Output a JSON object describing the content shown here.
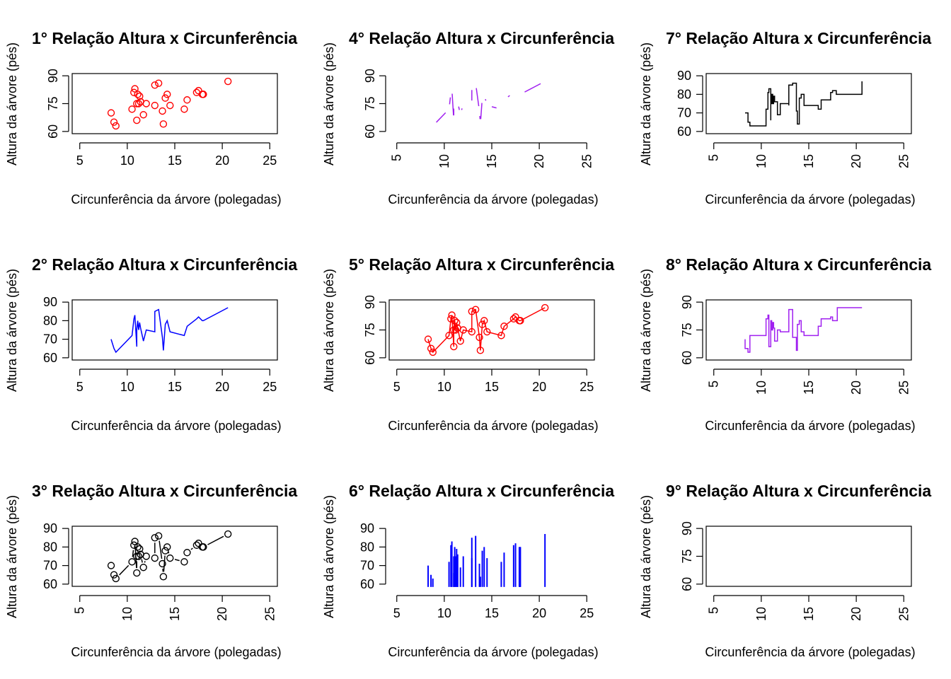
{
  "figure": {
    "layout": "3x3 grid of R base-graphics panels, filled column-wise (1-3 left column, 4-6 middle, 7-9 right)"
  },
  "chart_data": [
    {
      "panel": 1,
      "type": "scatter",
      "plot_type": "p",
      "title": "1° Relação Altura x Circunferência",
      "xlabel": "Circunferência da árvore (polegadas)",
      "ylabel": "Altura da árvore (pés)",
      "xlim": [
        5,
        25
      ],
      "ylim": [
        60,
        90
      ],
      "xticks": [
        5,
        10,
        15,
        20,
        25
      ],
      "yticks": [
        60,
        75,
        90
      ],
      "x_tick_orientation": "horizontal",
      "y_tick_orientation": "vertical",
      "color": "#ff0000",
      "box": true,
      "grid": false,
      "x": [
        8.3,
        8.6,
        8.8,
        10.5,
        10.7,
        10.8,
        11.0,
        11.0,
        11.1,
        11.2,
        11.3,
        11.4,
        11.4,
        11.7,
        12.0,
        12.9,
        12.9,
        13.3,
        13.7,
        13.8,
        14.0,
        14.2,
        14.5,
        16.0,
        16.3,
        17.3,
        17.5,
        17.9,
        18.0,
        18.0,
        20.6
      ],
      "y": [
        70,
        65,
        63,
        72,
        81,
        83,
        66,
        75,
        80,
        75,
        79,
        76,
        76,
        69,
        75,
        74,
        85,
        86,
        71,
        64,
        78,
        80,
        74,
        72,
        77,
        81,
        82,
        80,
        80,
        80,
        87
      ]
    },
    {
      "panel": 2,
      "type": "line",
      "plot_type": "l",
      "title": "2° Relação Altura x Circunferência",
      "xlabel": "Circunferência da árvore (polegadas)",
      "ylabel": "Altura da árvore (pés)",
      "xlim": [
        5,
        25
      ],
      "ylim": [
        60,
        90
      ],
      "xticks": [
        5,
        10,
        15,
        20,
        25
      ],
      "yticks": [
        60,
        70,
        80,
        90
      ],
      "x_tick_orientation": "horizontal",
      "y_tick_orientation": "horizontal",
      "color": "#0000ff",
      "box": true,
      "grid": false,
      "x": [
        8.3,
        8.6,
        8.8,
        10.5,
        10.7,
        10.8,
        11.0,
        11.0,
        11.1,
        11.2,
        11.3,
        11.4,
        11.4,
        11.7,
        12.0,
        12.9,
        12.9,
        13.3,
        13.7,
        13.8,
        14.0,
        14.2,
        14.5,
        16.0,
        16.3,
        17.3,
        17.5,
        17.9,
        18.0,
        18.0,
        20.6
      ],
      "y": [
        70,
        65,
        63,
        72,
        81,
        83,
        66,
        75,
        80,
        75,
        79,
        76,
        76,
        69,
        75,
        74,
        85,
        86,
        71,
        64,
        78,
        80,
        74,
        72,
        77,
        81,
        82,
        80,
        80,
        80,
        87
      ]
    },
    {
      "panel": 3,
      "type": "line",
      "plot_type": "b",
      "title": "3° Relação Altura x Circunferência",
      "xlabel": "Circunferência da árvore (polegadas)",
      "ylabel": "Altura da árvore (pés)",
      "xlim": [
        5,
        25
      ],
      "ylim": [
        60,
        90
      ],
      "xticks": [
        5,
        10,
        15,
        20,
        25
      ],
      "yticks": [
        60,
        70,
        80,
        90
      ],
      "x_tick_orientation": "vertical",
      "y_tick_orientation": "horizontal",
      "color": "#000000",
      "box": true,
      "grid": false,
      "x": [
        8.3,
        8.6,
        8.8,
        10.5,
        10.7,
        10.8,
        11.0,
        11.0,
        11.1,
        11.2,
        11.3,
        11.4,
        11.4,
        11.7,
        12.0,
        12.9,
        12.9,
        13.3,
        13.7,
        13.8,
        14.0,
        14.2,
        14.5,
        16.0,
        16.3,
        17.3,
        17.5,
        17.9,
        18.0,
        18.0,
        20.6
      ],
      "y": [
        70,
        65,
        63,
        72,
        81,
        83,
        66,
        75,
        80,
        75,
        79,
        76,
        76,
        69,
        75,
        74,
        85,
        86,
        71,
        64,
        78,
        80,
        74,
        72,
        77,
        81,
        82,
        80,
        80,
        80,
        87
      ]
    },
    {
      "panel": 4,
      "type": "line",
      "plot_type": "c",
      "title": "4° Relação Altura x Circunferência",
      "xlabel": "Circunferência da árvore (polegadas)",
      "ylabel": "Altura da árvore (pés)",
      "xlim": [
        5,
        25
      ],
      "ylim": [
        60,
        90
      ],
      "xticks": [
        5,
        10,
        15,
        20,
        25
      ],
      "yticks": [
        60,
        75,
        90
      ],
      "x_tick_orientation": "vertical",
      "y_tick_orientation": "vertical",
      "color": "#a020f0",
      "box": false,
      "grid": false,
      "x": [
        8.3,
        8.6,
        8.8,
        10.5,
        10.7,
        10.8,
        11.0,
        11.0,
        11.1,
        11.2,
        11.3,
        11.4,
        11.4,
        11.7,
        12.0,
        12.9,
        12.9,
        13.3,
        13.7,
        13.8,
        14.0,
        14.2,
        14.5,
        16.0,
        16.3,
        17.3,
        17.5,
        17.9,
        18.0,
        18.0,
        20.6
      ],
      "y": [
        70,
        65,
        63,
        72,
        81,
        83,
        66,
        75,
        80,
        75,
        79,
        76,
        76,
        69,
        75,
        74,
        85,
        86,
        71,
        64,
        78,
        80,
        74,
        72,
        77,
        81,
        82,
        80,
        80,
        80,
        87
      ]
    },
    {
      "panel": 5,
      "type": "line",
      "plot_type": "o",
      "title": "5° Relação Altura x Circunferência",
      "xlabel": "Circunferência da árvore (polegadas)",
      "ylabel": "Altura da árvore (pés)",
      "xlim": [
        5,
        25
      ],
      "ylim": [
        60,
        90
      ],
      "xticks": [
        5,
        10,
        15,
        20,
        25
      ],
      "yticks": [
        60,
        75,
        90
      ],
      "x_tick_orientation": "horizontal",
      "y_tick_orientation": "vertical",
      "color": "#ff0000",
      "box": true,
      "grid": false,
      "x": [
        8.3,
        8.6,
        8.8,
        10.5,
        10.7,
        10.8,
        11.0,
        11.0,
        11.1,
        11.2,
        11.3,
        11.4,
        11.4,
        11.7,
        12.0,
        12.9,
        12.9,
        13.3,
        13.7,
        13.8,
        14.0,
        14.2,
        14.5,
        16.0,
        16.3,
        17.3,
        17.5,
        17.9,
        18.0,
        18.0,
        20.6
      ],
      "y": [
        70,
        65,
        63,
        72,
        81,
        83,
        66,
        75,
        80,
        75,
        79,
        76,
        76,
        69,
        75,
        74,
        85,
        86,
        71,
        64,
        78,
        80,
        74,
        72,
        77,
        81,
        82,
        80,
        80,
        80,
        87
      ]
    },
    {
      "panel": 6,
      "type": "bar",
      "plot_type": "h",
      "title": "6° Relação Altura x Circunferência",
      "xlabel": "Circunferência da árvore (polegadas)",
      "ylabel": "Altura da árvore (pés)",
      "xlim": [
        5,
        25
      ],
      "ylim": [
        60,
        90
      ],
      "xticks": [
        5,
        10,
        15,
        20,
        25
      ],
      "yticks": [
        60,
        70,
        80,
        90
      ],
      "x_tick_orientation": "horizontal",
      "y_tick_orientation": "horizontal",
      "color": "#0000ff",
      "box": false,
      "grid": false,
      "x": [
        8.3,
        8.6,
        8.8,
        10.5,
        10.7,
        10.8,
        11.0,
        11.0,
        11.1,
        11.2,
        11.3,
        11.4,
        11.4,
        11.7,
        12.0,
        12.9,
        12.9,
        13.3,
        13.7,
        13.8,
        14.0,
        14.2,
        14.5,
        16.0,
        16.3,
        17.3,
        17.5,
        17.9,
        18.0,
        18.0,
        20.6
      ],
      "y": [
        70,
        65,
        63,
        72,
        81,
        83,
        66,
        75,
        80,
        75,
        79,
        76,
        76,
        69,
        75,
        74,
        85,
        86,
        71,
        64,
        78,
        80,
        74,
        72,
        77,
        81,
        82,
        80,
        80,
        80,
        87
      ]
    },
    {
      "panel": 7,
      "type": "line",
      "plot_type": "s",
      "title": "7° Relação Altura x Circunferência",
      "xlabel": "Circunferência da árvore (polegadas)",
      "ylabel": "Altura da árvore (pés)",
      "xlim": [
        5,
        25
      ],
      "ylim": [
        60,
        90
      ],
      "xticks": [
        5,
        10,
        15,
        20,
        25
      ],
      "yticks": [
        60,
        70,
        80,
        90
      ],
      "x_tick_orientation": "vertical",
      "y_tick_orientation": "horizontal",
      "color": "#000000",
      "box": true,
      "grid": false,
      "x": [
        8.3,
        8.6,
        8.8,
        10.5,
        10.7,
        10.8,
        11.0,
        11.0,
        11.1,
        11.2,
        11.3,
        11.4,
        11.4,
        11.7,
        12.0,
        12.9,
        12.9,
        13.3,
        13.7,
        13.8,
        14.0,
        14.2,
        14.5,
        16.0,
        16.3,
        17.3,
        17.5,
        17.9,
        18.0,
        18.0,
        20.6
      ],
      "y": [
        70,
        65,
        63,
        72,
        81,
        83,
        66,
        75,
        80,
        75,
        79,
        76,
        76,
        69,
        75,
        74,
        85,
        86,
        71,
        64,
        78,
        80,
        74,
        72,
        77,
        81,
        82,
        80,
        80,
        80,
        87
      ]
    },
    {
      "panel": 8,
      "type": "line",
      "plot_type": "S",
      "title": "8° Relação Altura x Circunferência",
      "xlabel": "Circunferência da árvore (polegadas)",
      "ylabel": "Altura da árvore (pés)",
      "xlim": [
        5,
        25
      ],
      "ylim": [
        60,
        90
      ],
      "xticks": [
        5,
        10,
        15,
        20,
        25
      ],
      "yticks": [
        60,
        75,
        90
      ],
      "x_tick_orientation": "vertical",
      "y_tick_orientation": "vertical",
      "color": "#a020f0",
      "box": true,
      "grid": false,
      "x": [
        8.3,
        8.6,
        8.8,
        10.5,
        10.7,
        10.8,
        11.0,
        11.0,
        11.1,
        11.2,
        11.3,
        11.4,
        11.4,
        11.7,
        12.0,
        12.9,
        12.9,
        13.3,
        13.7,
        13.8,
        14.0,
        14.2,
        14.5,
        16.0,
        16.3,
        17.3,
        17.5,
        17.9,
        18.0,
        18.0,
        20.6
      ],
      "y": [
        70,
        65,
        63,
        72,
        81,
        83,
        66,
        75,
        80,
        75,
        79,
        76,
        76,
        69,
        75,
        74,
        85,
        86,
        71,
        64,
        78,
        80,
        74,
        72,
        77,
        81,
        82,
        80,
        80,
        80,
        87
      ]
    },
    {
      "panel": 9,
      "type": "scatter",
      "plot_type": "n",
      "title": "9° Relação Altura x Circunferência",
      "xlabel": "Circunferência da árvore (polegadas)",
      "ylabel": "Altura da árvore (pés)",
      "xlim": [
        5,
        25
      ],
      "ylim": [
        60,
        90
      ],
      "xticks": [
        5,
        10,
        15,
        20,
        25
      ],
      "yticks": [
        60,
        75,
        90
      ],
      "x_tick_orientation": "vertical",
      "y_tick_orientation": "vertical",
      "color": "#000000",
      "box": true,
      "grid": false,
      "x": [],
      "y": []
    }
  ]
}
